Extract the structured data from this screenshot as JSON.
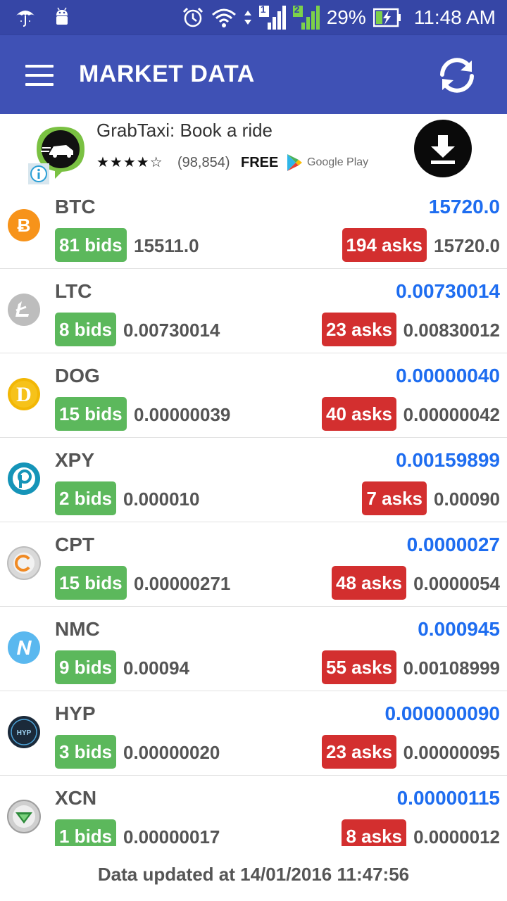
{
  "status_bar": {
    "icons_left": [
      "umbrella-icon",
      "android-icon"
    ],
    "icons_right": [
      "alarm-icon",
      "wifi-icon",
      "signal-sim1-icon",
      "signal-sim2-icon",
      "battery-charging-icon"
    ],
    "sim1_label": "1",
    "sim2_label": "2",
    "battery_percent": "29%",
    "time": "11:48 AM"
  },
  "app_bar": {
    "title": "MARKET DATA",
    "menu_icon": "hamburger-menu-icon",
    "refresh_icon": "refresh-icon",
    "color": "#3f51b5"
  },
  "ad": {
    "title": "GrabTaxi: Book a ride",
    "rating_stars": "★★★★☆",
    "rating_value": 4.5,
    "rating_count": "(98,854)",
    "price": "FREE",
    "store": "Google Play",
    "download_icon": "download-icon",
    "info_icon": "info-icon"
  },
  "coins": [
    {
      "symbol": "BTC",
      "price": "15720.0",
      "bids_label": "81 bids",
      "bid_value": "15511.0",
      "asks_label": "194 asks",
      "ask_value": "15720.0",
      "icon": "bitcoin-icon",
      "icon_color": "#f7931a"
    },
    {
      "symbol": "LTC",
      "price": "0.00730014",
      "bids_label": "8 bids",
      "bid_value": "0.00730014",
      "asks_label": "23 asks",
      "ask_value": "0.00830012",
      "icon": "litecoin-icon",
      "icon_color": "#bdbdbd"
    },
    {
      "symbol": "DOG",
      "price": "0.00000040",
      "bids_label": "15 bids",
      "bid_value": "0.00000039",
      "asks_label": "40 asks",
      "ask_value": "0.00000042",
      "icon": "dogecoin-icon",
      "icon_color": "#f2b705"
    },
    {
      "symbol": "XPY",
      "price": "0.00159899",
      "bids_label": "2 bids",
      "bid_value": "0.000010",
      "asks_label": "7 asks",
      "ask_value": "0.00090",
      "icon": "paycoin-icon",
      "icon_color": "#1594b8"
    },
    {
      "symbol": "CPT",
      "price": "0.0000027",
      "bids_label": "15 bids",
      "bid_value": "0.00000271",
      "asks_label": "48 asks",
      "ask_value": "0.0000054",
      "icon": "cryptaur-icon",
      "icon_color": "#cccccc"
    },
    {
      "symbol": "NMC",
      "price": "0.000945",
      "bids_label": "9 bids",
      "bid_value": "0.00094",
      "asks_label": "55 asks",
      "ask_value": "0.00108999",
      "icon": "namecoin-icon",
      "icon_color": "#5ab8ef"
    },
    {
      "symbol": "HYP",
      "price": "0.000000090",
      "bids_label": "3 bids",
      "bid_value": "0.00000020",
      "asks_label": "23 asks",
      "ask_value": "0.00000095",
      "icon": "hyperstake-icon",
      "icon_color": "#1b2a3a"
    },
    {
      "symbol": "XCN",
      "price": "0.00000115",
      "bids_label": "1 bids",
      "bid_value": "0.00000017",
      "asks_label": "8 asks",
      "ask_value": "0.0000012",
      "icon": "cryptonite-icon",
      "icon_color": "#9e9e9e"
    }
  ],
  "colors": {
    "bids_badge": "#5cb85c",
    "asks_badge": "#d32f2f",
    "price_text": "#1e6df0"
  },
  "footer": {
    "text": "Data updated at 14/01/2016 11:47:56"
  }
}
